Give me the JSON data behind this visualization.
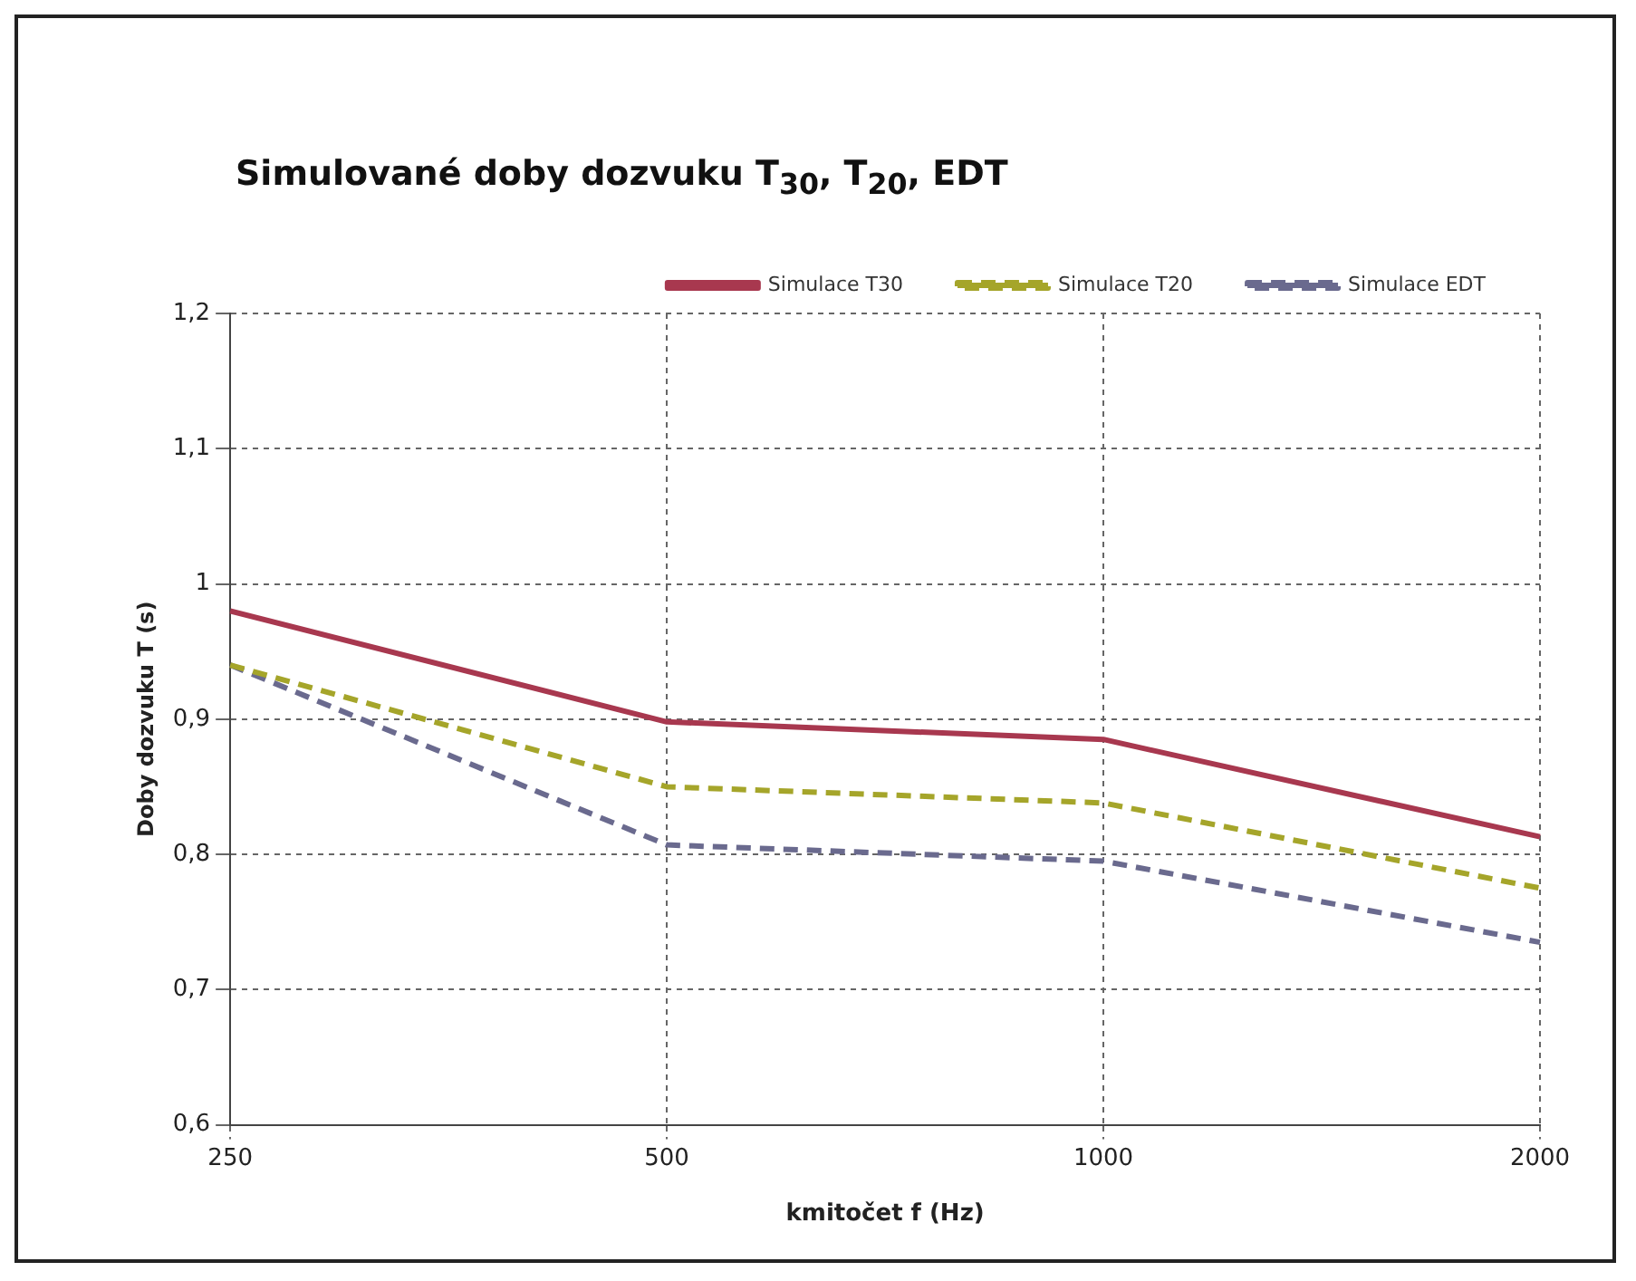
{
  "chart_data": {
    "type": "line",
    "title": "Simulované doby dozvuku T$_{30}$, T$_{20}$, EDT",
    "xlabel": "kmitočet f (Hz)",
    "ylabel": "Doby dozvuku T (s)",
    "categories": [
      "250",
      "500",
      "1000",
      "2000"
    ],
    "series": [
      {
        "name": "Simulace T30",
        "color": "#a8384f",
        "line_style": "solid",
        "values": [
          0.98,
          0.898,
          0.885,
          0.813
        ]
      },
      {
        "name": "Simulace T20",
        "color": "#a5a52a",
        "line_style": "dashed",
        "values": [
          0.94,
          0.85,
          0.838,
          0.775
        ]
      },
      {
        "name": "Simulace EDT",
        "color": "#6a6a8e",
        "line_style": "dashed",
        "values": [
          0.94,
          0.807,
          0.795,
          0.735
        ]
      }
    ],
    "ylim": [
      0.6,
      1.2
    ],
    "yticks": [
      {
        "value": 0.6,
        "label": "0,6"
      },
      {
        "value": 0.7,
        "label": "0,7"
      },
      {
        "value": 0.8,
        "label": "0,8"
      },
      {
        "value": 0.9,
        "label": "0,9"
      },
      1,
      {
        "value": 1.1,
        "label": "1,1"
      },
      {
        "value": 1.2,
        "label": "1,2"
      }
    ],
    "grid": true,
    "legend": "top",
    "marker": "none"
  }
}
